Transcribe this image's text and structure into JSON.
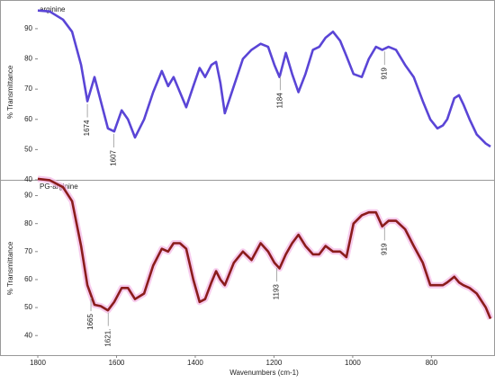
{
  "chart_data": [
    {
      "type": "line",
      "title": "arginine",
      "ylabel": "% Transmittance",
      "xlim": [
        1800,
        650
      ],
      "ylim": [
        40,
        98
      ],
      "yticks": [
        40,
        50,
        60,
        70,
        80,
        90
      ],
      "x": [
        1800,
        1770,
        1736,
        1713,
        1690,
        1674,
        1656,
        1640,
        1622,
        1606,
        1587,
        1571,
        1553,
        1530,
        1507,
        1485,
        1469,
        1455,
        1439,
        1423,
        1405,
        1389,
        1375,
        1359,
        1347,
        1336,
        1325,
        1302,
        1279,
        1257,
        1234,
        1215,
        1199,
        1186,
        1170,
        1154,
        1138,
        1120,
        1101,
        1085,
        1069,
        1050,
        1032,
        1016,
        998,
        977,
        959,
        941,
        925,
        909,
        890,
        867,
        845,
        822,
        803,
        785,
        771,
        760,
        742,
        730,
        719,
        703,
        685,
        662,
        650
      ],
      "series": [
        {
          "color": "#5a45d6",
          "values": [
            96,
            95.7,
            93,
            89,
            78,
            66,
            74,
            66,
            57,
            56,
            63,
            60,
            54,
            60,
            69,
            76,
            71,
            74,
            69,
            64,
            71,
            77,
            74,
            78,
            79,
            72,
            62,
            71,
            80,
            83,
            85,
            84,
            78,
            74,
            82,
            75,
            69,
            75,
            83,
            84,
            87,
            89,
            86,
            81,
            75,
            74,
            80,
            84,
            83,
            84,
            83,
            78,
            74,
            66,
            60,
            57,
            58,
            60,
            67,
            68,
            65,
            60,
            55,
            52,
            51
          ]
        }
      ],
      "annotations": [
        1674,
        1607,
        1184,
        919
      ]
    },
    {
      "type": "line",
      "title": "PG-arginine",
      "ylabel": "% Transmittance",
      "xlabel": "Wavenumbers (cm-1)",
      "xlim": [
        1800,
        650
      ],
      "ylim": [
        33,
        95
      ],
      "yticks": [
        40,
        50,
        60,
        70,
        80,
        90
      ],
      "xticks": [
        1800,
        1600,
        1400,
        1200,
        1000,
        800
      ],
      "x": [
        1800,
        1770,
        1736,
        1713,
        1690,
        1674,
        1656,
        1640,
        1622,
        1606,
        1587,
        1571,
        1553,
        1530,
        1507,
        1485,
        1469,
        1455,
        1439,
        1423,
        1405,
        1389,
        1375,
        1359,
        1347,
        1336,
        1325,
        1302,
        1279,
        1257,
        1234,
        1215,
        1199,
        1186,
        1170,
        1154,
        1138,
        1120,
        1101,
        1085,
        1069,
        1050,
        1032,
        1016,
        998,
        977,
        959,
        941,
        925,
        909,
        890,
        867,
        845,
        822,
        803,
        785,
        771,
        760,
        742,
        730,
        719,
        703,
        685,
        662,
        650
      ],
      "series": [
        {
          "color": "#8b1c1c",
          "values": [
            96,
            95.5,
            93,
            88,
            72,
            58,
            51,
            50.5,
            49,
            52,
            57,
            57,
            53,
            55,
            65,
            71,
            70,
            73,
            73,
            71,
            60,
            52,
            53,
            59,
            63,
            60,
            58,
            66,
            70,
            67,
            73,
            70,
            66,
            64,
            69,
            73,
            76,
            72,
            69,
            69,
            72,
            70,
            70,
            68,
            80,
            83,
            84,
            84,
            79,
            81,
            81,
            78,
            72,
            66,
            58,
            58,
            58,
            59,
            61,
            59,
            58,
            57,
            55,
            50,
            46
          ]
        }
      ],
      "annotations": [
        1665,
        {
          "value": 1621,
          "label": "1621."
        },
        1193,
        919
      ]
    }
  ]
}
